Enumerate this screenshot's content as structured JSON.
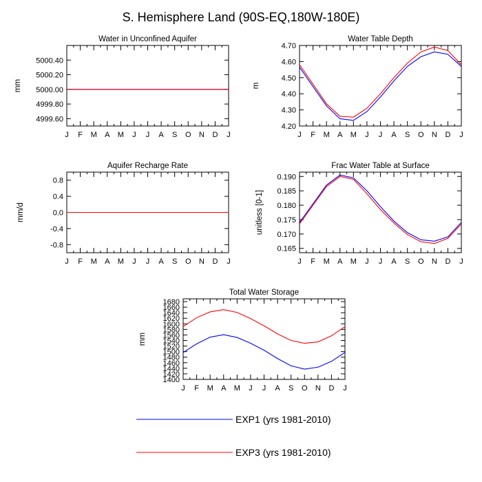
{
  "figure": {
    "title": "S. Hemisphere Land (90S-EQ,180W-180E)",
    "colors": {
      "exp1": "#0000ff",
      "exp3": "#ff0000",
      "axis": "#000000"
    }
  },
  "legend": [
    {
      "label": "EXP1 (yrs 1981-2010)",
      "color": "#0000ff"
    },
    {
      "label": "EXP3 (yrs 1981-2010)",
      "color": "#ff0000"
    }
  ],
  "chart_data": [
    {
      "type": "line",
      "title": "Water in Unconfined Aquifer",
      "ylabel": "mm",
      "categories": [
        "J",
        "F",
        "M",
        "A",
        "M",
        "J",
        "J",
        "A",
        "S",
        "O",
        "N",
        "D",
        "J"
      ],
      "ylim": [
        4999.5,
        5000.6
      ],
      "yticks": [
        4999.6,
        4999.8,
        5000.0,
        5000.2,
        5000.4
      ],
      "ytick_labels": [
        "4999.60",
        "4999.80",
        "5000.00",
        "5000.20",
        "5000.40"
      ],
      "series": [
        {
          "color": "#0000ff",
          "values": [
            5000,
            5000,
            5000,
            5000,
            5000,
            5000,
            5000,
            5000,
            5000,
            5000,
            5000,
            5000,
            5000
          ]
        },
        {
          "color": "#ff0000",
          "values": [
            5000,
            5000,
            5000,
            5000,
            5000,
            5000,
            5000,
            5000,
            5000,
            5000,
            5000,
            5000,
            5000
          ]
        }
      ]
    },
    {
      "type": "line",
      "title": "Water Table Depth",
      "ylabel": "m",
      "categories": [
        "J",
        "F",
        "M",
        "A",
        "M",
        "J",
        "J",
        "A",
        "S",
        "O",
        "N",
        "D",
        "J"
      ],
      "ylim": [
        4.2,
        4.7
      ],
      "yticks": [
        4.2,
        4.3,
        4.4,
        4.5,
        4.6,
        4.7
      ],
      "ytick_labels": [
        "4.20",
        "4.30",
        "4.40",
        "4.50",
        "4.60",
        "4.70"
      ],
      "series": [
        {
          "color": "#0000ff",
          "values": [
            4.565,
            4.445,
            4.325,
            4.245,
            4.235,
            4.29,
            4.38,
            4.48,
            4.57,
            4.63,
            4.66,
            4.645,
            4.57
          ]
        },
        {
          "color": "#ff0000",
          "values": [
            4.58,
            4.46,
            4.338,
            4.26,
            4.255,
            4.31,
            4.4,
            4.5,
            4.59,
            4.66,
            4.69,
            4.668,
            4.58
          ]
        }
      ]
    },
    {
      "type": "line",
      "title": "Aquifer Recharge Rate",
      "ylabel": "mm/d",
      "categories": [
        "J",
        "F",
        "M",
        "A",
        "M",
        "J",
        "J",
        "A",
        "S",
        "O",
        "N",
        "D",
        "J"
      ],
      "ylim": [
        -1.0,
        1.0
      ],
      "yticks": [
        -0.8,
        -0.4,
        0.0,
        0.4,
        0.8
      ],
      "ytick_labels": [
        "-0.8",
        "-0.4",
        "0.0",
        "0.4",
        "0.8"
      ],
      "series": [
        {
          "color": "#0000ff",
          "values": [
            0,
            0,
            0,
            0,
            0,
            0,
            0,
            0,
            0,
            0,
            0,
            0,
            0
          ]
        },
        {
          "color": "#ff0000",
          "values": [
            0,
            0,
            0,
            0,
            0,
            0,
            0,
            0,
            0,
            0,
            0,
            0,
            0
          ]
        }
      ]
    },
    {
      "type": "line",
      "title": "Frac Water Table at Surface",
      "ylabel": "unitless [0-1]",
      "categories": [
        "J",
        "F",
        "M",
        "A",
        "M",
        "J",
        "J",
        "A",
        "S",
        "O",
        "N",
        "D",
        "J"
      ],
      "ylim": [
        0.1635,
        0.1915
      ],
      "yticks": [
        0.165,
        0.17,
        0.175,
        0.18,
        0.185,
        0.19
      ],
      "ytick_labels": [
        "0.165",
        "0.170",
        "0.175",
        "0.180",
        "0.185",
        "0.190"
      ],
      "series": [
        {
          "color": "#0000ff",
          "values": [
            0.174,
            0.1805,
            0.187,
            0.1905,
            0.1895,
            0.185,
            0.1795,
            0.1745,
            0.1705,
            0.168,
            0.1675,
            0.169,
            0.174
          ]
        },
        {
          "color": "#ff0000",
          "values": [
            0.1735,
            0.18,
            0.1865,
            0.19,
            0.189,
            0.184,
            0.1785,
            0.1738,
            0.1698,
            0.1673,
            0.1667,
            0.1685,
            0.1735
          ]
        }
      ]
    },
    {
      "type": "line",
      "title": "Total Water Storage",
      "ylabel": "mm",
      "categories": [
        "J",
        "F",
        "M",
        "A",
        "M",
        "J",
        "J",
        "A",
        "S",
        "O",
        "N",
        "D",
        "J"
      ],
      "ylim": [
        1400,
        1690
      ],
      "yticks": [
        1400,
        1420,
        1440,
        1460,
        1480,
        1500,
        1520,
        1540,
        1560,
        1580,
        1600,
        1620,
        1640,
        1660,
        1680
      ],
      "ytick_labels": [
        "1400",
        "1420",
        "1440",
        "1460",
        "1480",
        "1500",
        "1520",
        "1540",
        "1560",
        "1580",
        "1600",
        "1620",
        "1640",
        "1660",
        "1680"
      ],
      "series": [
        {
          "color": "#0000ff",
          "values": [
            1497,
            1528,
            1552,
            1561,
            1551,
            1530,
            1505,
            1475,
            1449,
            1437,
            1444,
            1465,
            1497
          ]
        },
        {
          "color": "#ff0000",
          "values": [
            1590,
            1622,
            1643,
            1651,
            1641,
            1619,
            1593,
            1564,
            1540,
            1530,
            1535,
            1557,
            1590
          ]
        }
      ]
    }
  ]
}
